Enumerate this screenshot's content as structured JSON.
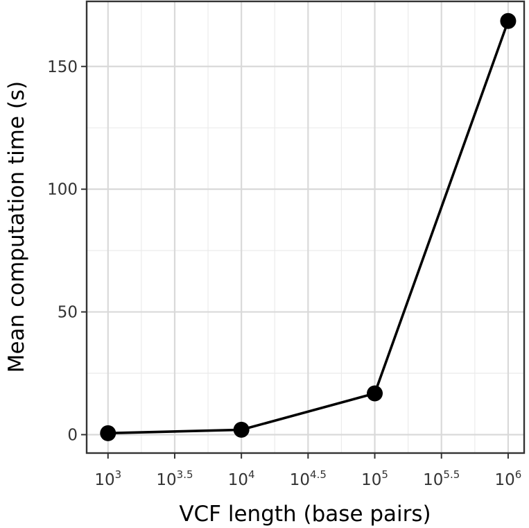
{
  "chart_data": {
    "type": "line",
    "title": "",
    "xlabel": "VCF length (base pairs)",
    "ylabel": "Mean computation time (s)",
    "x_scale": "log10",
    "x_exponents": [
      3,
      4,
      5,
      6
    ],
    "x": [
      1000,
      10000,
      100000,
      1000000
    ],
    "values": [
      0.6,
      2.0,
      16.8,
      168.5
    ],
    "xlim_exponent": [
      2.84,
      6.12
    ],
    "ylim": [
      -7.5,
      176.5
    ],
    "x_ticks": [
      {
        "base": "10",
        "exp": "3"
      },
      {
        "base": "10",
        "exp": "3.5"
      },
      {
        "base": "10",
        "exp": "4"
      },
      {
        "base": "10",
        "exp": "4.5"
      },
      {
        "base": "10",
        "exp": "5"
      },
      {
        "base": "10",
        "exp": "5.5"
      },
      {
        "base": "10",
        "exp": "6"
      }
    ],
    "y_ticks": [
      "0",
      "50",
      "100",
      "150"
    ],
    "grid": true,
    "legend": "none"
  }
}
